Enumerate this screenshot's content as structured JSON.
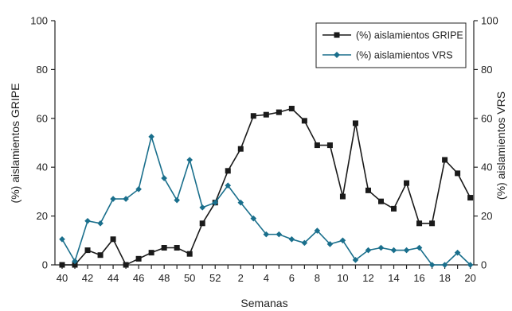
{
  "chart_data": {
    "type": "line",
    "x": [
      "40",
      "41",
      "42",
      "43",
      "44",
      "45",
      "46",
      "47",
      "48",
      "49",
      "50",
      "51",
      "52",
      "1",
      "2",
      "3",
      "4",
      "5",
      "6",
      "7",
      "8",
      "9",
      "10",
      "11",
      "12",
      "13",
      "14",
      "15",
      "16",
      "17",
      "18",
      "19",
      "20"
    ],
    "x_tick_labels": [
      "40",
      "42",
      "44",
      "46",
      "48",
      "50",
      "52",
      "2",
      "4",
      "6",
      "8",
      "10",
      "12",
      "14",
      "16",
      "18",
      "20"
    ],
    "xlabel": "Semanas",
    "ylabel_left": "(%) aislamientos GRIPE",
    "ylabel_right": "(%) aislamientos VRS",
    "ylim": [
      0,
      100
    ],
    "yticks": [
      0,
      20,
      40,
      60,
      80,
      100
    ],
    "legend_position": "top-right",
    "grid": false,
    "series": [
      {
        "name": "(%) aislamientos GRIPE",
        "color": "#1a1a1a",
        "marker": "square",
        "values": [
          0,
          0,
          6,
          4,
          10.5,
          0,
          2.5,
          5,
          7,
          7,
          4.5,
          17,
          25.5,
          38.5,
          47.5,
          61,
          61.5,
          62.5,
          64,
          59,
          49,
          49,
          28,
          58,
          30.5,
          26,
          23,
          33.5,
          17,
          17,
          43,
          37.5,
          27.5
        ]
      },
      {
        "name": "(%) aislamientos VRS",
        "color": "#1a6f8c",
        "marker": "diamond",
        "values": [
          10.5,
          1.5,
          18,
          17,
          27,
          27,
          31,
          52.5,
          35.5,
          26.5,
          43,
          23.5,
          25.5,
          32.5,
          25.5,
          19,
          12.5,
          12.5,
          10.5,
          9,
          14,
          8.5,
          10,
          2,
          6,
          7,
          6,
          6,
          7,
          0,
          0,
          5,
          0
        ]
      }
    ]
  }
}
